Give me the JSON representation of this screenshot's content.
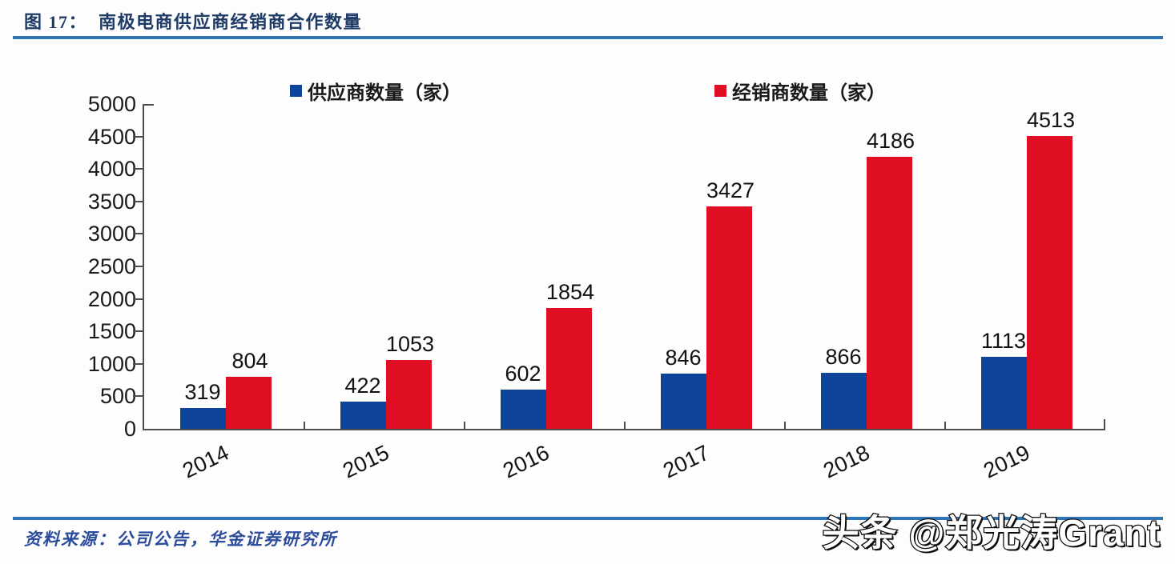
{
  "figure": {
    "label": "图 17：",
    "title": "南极电商供应商经销商合作数量"
  },
  "legend": {
    "supplier": "供应商数量（家）",
    "distributor": "经销商数量（家）"
  },
  "source": {
    "text": "资料来源：公司公告，华金证券研究所"
  },
  "watermark": {
    "text": "头条 @郑光涛Grant"
  },
  "colors": {
    "supplier_blue": "#0D4499",
    "distributor_red": "#E00E22",
    "rule_blue": "#2E75B5",
    "title_navy": "#1E3A66",
    "source_blue": "#2C4C9C",
    "axis_gray": "#4D4D4D",
    "label_black": "#111111"
  },
  "chart_data": {
    "type": "bar",
    "categories": [
      "2014",
      "2015",
      "2016",
      "2017",
      "2018",
      "2019"
    ],
    "series": [
      {
        "name": "供应商数量（家）",
        "color": "#0D4499",
        "values": [
          319,
          422,
          602,
          846,
          866,
          1113
        ]
      },
      {
        "name": "经销商数量（家）",
        "color": "#E00E22",
        "values": [
          804,
          1053,
          1854,
          3427,
          4186,
          4513
        ]
      }
    ],
    "title": "南极电商供应商经销商合作数量",
    "xlabel": "",
    "ylabel": "",
    "ylim": [
      0,
      5000
    ],
    "ytick_step": 500,
    "grid": false,
    "legend_position": "top",
    "value_labels": true,
    "x_label_rotation_deg": -26
  }
}
